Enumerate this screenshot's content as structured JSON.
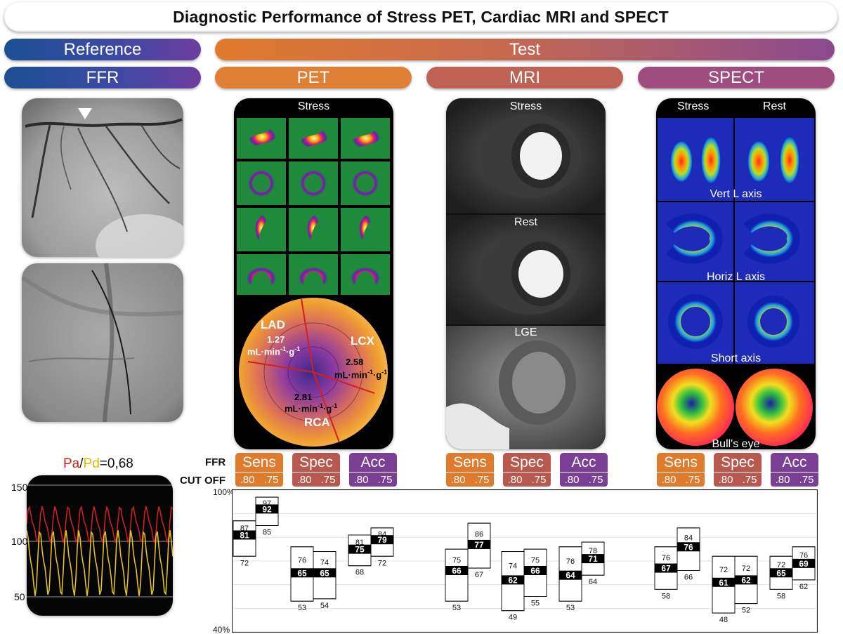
{
  "title": "Diagnostic Performance of Stress PET, Cardiac MRI and SPECT",
  "headers": {
    "reference": "Reference",
    "test": "Test",
    "ffr": "FFR",
    "pet": "PET",
    "mri": "MRI",
    "spect": "SPECT"
  },
  "pet_panel": {
    "stress_label": "Stress",
    "lad_label": "LAD",
    "lad_value": "1.27",
    "lcx_label": "LCX",
    "lcx_value": "2.58",
    "rca_label": "RCA",
    "rca_value": "2.81",
    "unit_text": "mL·min",
    "unit_exp1": "-1",
    "unit_mid": "·g",
    "unit_exp2": "-1"
  },
  "mri_panel": {
    "stress_label": "Stress",
    "rest_label": "Rest",
    "lge_label": "LGE"
  },
  "spect_panel": {
    "stress_label": "Stress",
    "rest_label": "Rest",
    "vert_label": "Vert L axis",
    "horiz_label": "Horiz L axis",
    "short_label": "Short axis",
    "bulls_label": "Bull's eye"
  },
  "pressure": {
    "pa_label": "Pa",
    "slash": "/",
    "pd_label": "Pd",
    "ratio_value": "=0,68",
    "ticks": [
      "150",
      "100",
      "50"
    ],
    "pa_color": "#cc1f1f",
    "pd_color": "#e5c21a"
  },
  "row_labels": {
    "ffr": "FFR",
    "cutoff": "CUT OFF"
  },
  "metric_labels": {
    "sens": "Sens",
    "spec": "Spec",
    "acc": "Acc"
  },
  "cutoffs": [
    ".80",
    ".75"
  ],
  "colors": {
    "sens": "#e07a2c",
    "spec": "#b9584f",
    "acc": "#7b3f95"
  },
  "chart_data": {
    "type": "table",
    "y_axis": {
      "min": 40,
      "max": 100,
      "ticks": [
        "100%",
        "40%"
      ]
    },
    "groups": [
      {
        "modality": "PET",
        "metric": "Sens",
        "boxes": [
          {
            "cutoff": ".80",
            "value": 81,
            "low": 72,
            "high": 87
          },
          {
            "cutoff": ".75",
            "value": 92,
            "low": 85,
            "high": 97
          }
        ]
      },
      {
        "modality": "PET",
        "metric": "Spec",
        "boxes": [
          {
            "cutoff": ".80",
            "value": 65,
            "low": 53,
            "high": 76
          },
          {
            "cutoff": ".75",
            "value": 65,
            "low": 54,
            "high": 74
          }
        ]
      },
      {
        "modality": "PET",
        "metric": "Acc",
        "boxes": [
          {
            "cutoff": ".80",
            "value": 75,
            "low": 68,
            "high": 81
          },
          {
            "cutoff": ".75",
            "value": 79,
            "low": 72,
            "high": 84
          }
        ]
      },
      {
        "modality": "MRI",
        "metric": "Sens",
        "boxes": [
          {
            "cutoff": ".80",
            "value": 66,
            "low": 53,
            "high": 75
          },
          {
            "cutoff": ".75",
            "value": 77,
            "low": 67,
            "high": 86
          }
        ]
      },
      {
        "modality": "MRI",
        "metric": "Spec",
        "boxes": [
          {
            "cutoff": ".80",
            "value": 62,
            "low": 49,
            "high": 74
          },
          {
            "cutoff": ".75",
            "value": 66,
            "low": 55,
            "high": 75
          }
        ]
      },
      {
        "modality": "MRI",
        "metric": "Acc",
        "boxes": [
          {
            "cutoff": ".80",
            "value": 64,
            "low": 53,
            "high": 76
          },
          {
            "cutoff": ".75",
            "value": 71,
            "low": 64,
            "high": 78
          }
        ]
      },
      {
        "modality": "SPECT",
        "metric": "Sens",
        "boxes": [
          {
            "cutoff": ".80",
            "value": 67,
            "low": 58,
            "high": 76
          },
          {
            "cutoff": ".75",
            "value": 76,
            "low": 66,
            "high": 84
          }
        ]
      },
      {
        "modality": "SPECT",
        "metric": "Spec",
        "boxes": [
          {
            "cutoff": ".80",
            "value": 61,
            "low": 48,
            "high": 72
          },
          {
            "cutoff": ".75",
            "value": 62,
            "low": 52,
            "high": 72
          }
        ]
      },
      {
        "modality": "SPECT",
        "metric": "Acc",
        "boxes": [
          {
            "cutoff": ".80",
            "value": 65,
            "low": 58,
            "high": 72
          },
          {
            "cutoff": ".75",
            "value": 69,
            "low": 62,
            "high": 76
          }
        ]
      }
    ]
  }
}
